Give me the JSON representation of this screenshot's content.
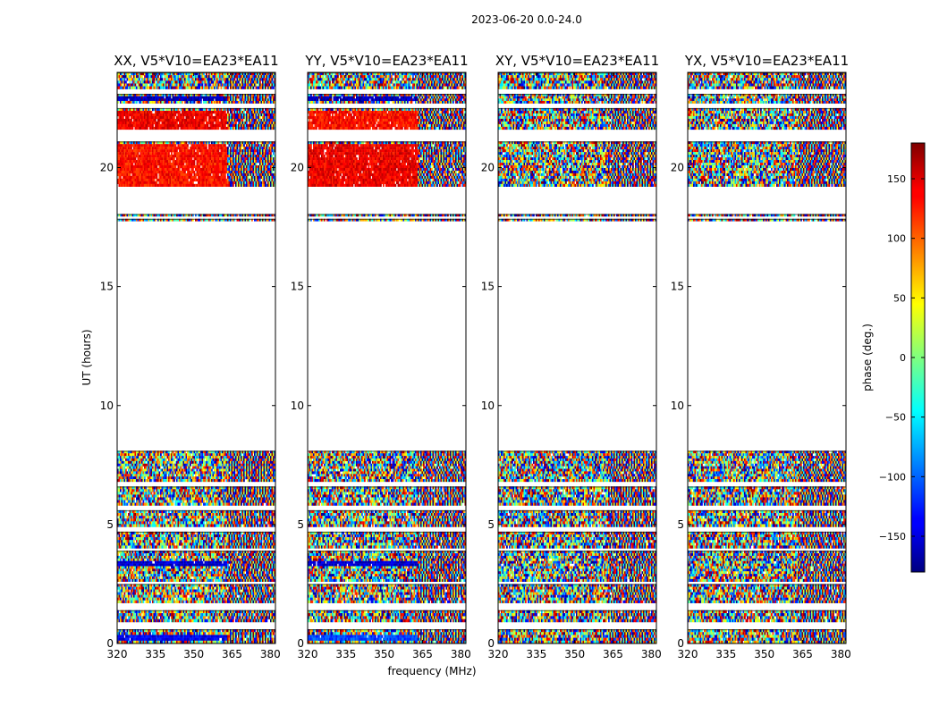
{
  "chart_data": {
    "type": "heatmap",
    "suptitle": "2023-06-20 0.0-24.0",
    "xlabel": "frequency (MHz)",
    "ylabel": "UT (hours)",
    "xlim": [
      320,
      382
    ],
    "ylim": [
      0,
      24
    ],
    "xticks": [
      320,
      335,
      350,
      365,
      380
    ],
    "yticks": [
      0,
      5,
      10,
      15,
      20
    ],
    "colorbar": {
      "label": "phase (deg.)",
      "range": [
        -180,
        180
      ],
      "ticks": [
        -150,
        -100,
        -50,
        0,
        50,
        100,
        150
      ],
      "tick_labels": [
        "−150",
        "−100",
        "−50",
        "0",
        "50",
        "100",
        "150"
      ],
      "colormap": "jet"
    },
    "panels": [
      {
        "id": "xx",
        "title": "XX, V5*V10=EA23*EA11",
        "pattern_seed": 11,
        "coherent_bias": true
      },
      {
        "id": "yy",
        "title": "YY, V5*V10=EA23*EA11",
        "pattern_seed": 23,
        "coherent_bias": true
      },
      {
        "id": "xy",
        "title": "XY, V5*V10=EA23*EA11",
        "pattern_seed": 37,
        "coherent_bias": false
      },
      {
        "id": "yx",
        "title": "YX, V5*V10=EA23*EA11",
        "pattern_seed": 53,
        "coherent_bias": false
      }
    ],
    "data_blocks_ut": [
      [
        0.0,
        0.6
      ],
      [
        0.9,
        1.4
      ],
      [
        1.7,
        2.5
      ],
      [
        2.6,
        3.9
      ],
      [
        4.0,
        4.7
      ],
      [
        4.9,
        5.6
      ],
      [
        5.8,
        6.6
      ],
      [
        6.8,
        8.1
      ],
      [
        17.75,
        17.85
      ],
      [
        17.95,
        18.05
      ],
      [
        19.2,
        21.1
      ],
      [
        21.6,
        22.5
      ],
      [
        22.7,
        23.1
      ],
      [
        23.3,
        24.0
      ]
    ],
    "coherent_segments": [
      {
        "panel": "xx",
        "ut": [
          0.1,
          0.4
        ],
        "phase_deg": -140
      },
      {
        "panel": "xx",
        "ut": [
          3.2,
          3.5
        ],
        "phase_deg": -150
      },
      {
        "panel": "xx",
        "ut": [
          19.2,
          21.0
        ],
        "phase_deg": 130
      },
      {
        "panel": "xx",
        "ut": [
          21.6,
          22.4
        ],
        "phase_deg": 140
      },
      {
        "panel": "xx",
        "ut": [
          22.8,
          23.0
        ],
        "phase_deg": -160
      },
      {
        "panel": "yy",
        "ut": [
          0.1,
          0.4
        ],
        "phase_deg": -110
      },
      {
        "panel": "yy",
        "ut": [
          3.2,
          3.5
        ],
        "phase_deg": -150
      },
      {
        "panel": "yy",
        "ut": [
          19.2,
          21.0
        ],
        "phase_deg": 140
      },
      {
        "panel": "yy",
        "ut": [
          21.6,
          22.4
        ],
        "phase_deg": 130
      },
      {
        "panel": "yy",
        "ut": [
          22.8,
          23.0
        ],
        "phase_deg": -160
      }
    ],
    "band_edge_mhz": 363
  }
}
